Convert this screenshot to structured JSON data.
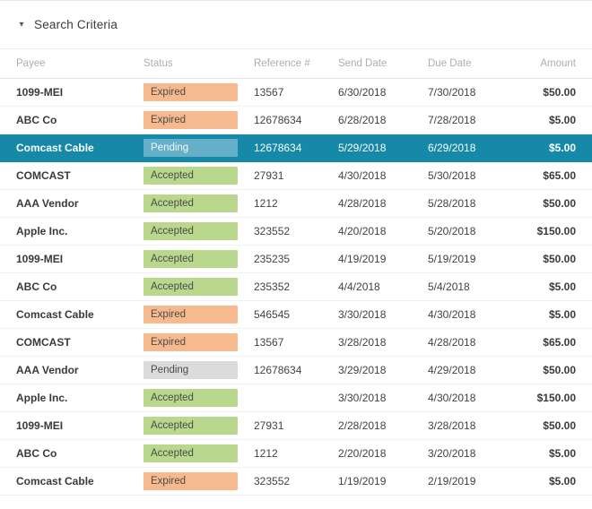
{
  "panel": {
    "collapse_icon": "▾",
    "title": "Search Criteria"
  },
  "table": {
    "columns": [
      "Payee",
      "Status",
      "Reference #",
      "Send Date",
      "Due Date",
      "Amount"
    ],
    "rows": [
      {
        "payee": "1099-MEI",
        "status": "Expired",
        "reference": "13567",
        "send_date": "6/30/2018",
        "due_date": "7/30/2018",
        "amount": "$50.00",
        "selected": false
      },
      {
        "payee": "ABC Co",
        "status": "Expired",
        "reference": "12678634",
        "send_date": "6/28/2018",
        "due_date": "7/28/2018",
        "amount": "$5.00",
        "selected": false
      },
      {
        "payee": "Comcast Cable",
        "status": "Pending",
        "reference": "12678634",
        "send_date": "5/29/2018",
        "due_date": "6/29/2018",
        "amount": "$5.00",
        "selected": true
      },
      {
        "payee": "COMCAST",
        "status": "Accepted",
        "reference": "27931",
        "send_date": "4/30/2018",
        "due_date": "5/30/2018",
        "amount": "$65.00",
        "selected": false
      },
      {
        "payee": "AAA Vendor",
        "status": "Accepted",
        "reference": "1212",
        "send_date": "4/28/2018",
        "due_date": "5/28/2018",
        "amount": "$50.00",
        "selected": false
      },
      {
        "payee": "Apple Inc.",
        "status": "Accepted",
        "reference": "323552",
        "send_date": "4/20/2018",
        "due_date": "5/20/2018",
        "amount": "$150.00",
        "selected": false
      },
      {
        "payee": "1099-MEI",
        "status": "Accepted",
        "reference": "235235",
        "send_date": "4/19/2019",
        "due_date": "5/19/2019",
        "amount": "$50.00",
        "selected": false
      },
      {
        "payee": "ABC Co",
        "status": "Accepted",
        "reference": "235352",
        "send_date": "4/4/2018",
        "due_date": "5/4/2018",
        "amount": "$5.00",
        "selected": false
      },
      {
        "payee": "Comcast Cable",
        "status": "Expired",
        "reference": "546545",
        "send_date": "3/30/2018",
        "due_date": "4/30/2018",
        "amount": "$5.00",
        "selected": false
      },
      {
        "payee": "COMCAST",
        "status": "Expired",
        "reference": "13567",
        "send_date": "3/28/2018",
        "due_date": "4/28/2018",
        "amount": "$65.00",
        "selected": false
      },
      {
        "payee": "AAA Vendor",
        "status": "Pending",
        "reference": "12678634",
        "send_date": "3/29/2018",
        "due_date": "4/29/2018",
        "amount": "$50.00",
        "selected": false
      },
      {
        "payee": "Apple Inc.",
        "status": "Accepted",
        "reference": "",
        "send_date": "3/30/2018",
        "due_date": "4/30/2018",
        "amount": "$150.00",
        "selected": false
      },
      {
        "payee": "1099-MEI",
        "status": "Accepted",
        "reference": "27931",
        "send_date": "2/28/2018",
        "due_date": "3/28/2018",
        "amount": "$50.00",
        "selected": false
      },
      {
        "payee": "ABC Co",
        "status": "Accepted",
        "reference": "1212",
        "send_date": "2/20/2018",
        "due_date": "3/20/2018",
        "amount": "$5.00",
        "selected": false
      },
      {
        "payee": "Comcast Cable",
        "status": "Expired",
        "reference": "323552",
        "send_date": "1/19/2019",
        "due_date": "2/19/2019",
        "amount": "$5.00",
        "selected": false
      }
    ]
  },
  "colors": {
    "selected_row_bg": "#1688a8",
    "selected_row_text": "#ffffff",
    "badge_expired": "#f7ba8e",
    "badge_accepted": "#b9d88e",
    "badge_pending": "#dbdbdb",
    "badge_pending_selected": "#65afc9",
    "header_label": "#aeaeae"
  }
}
